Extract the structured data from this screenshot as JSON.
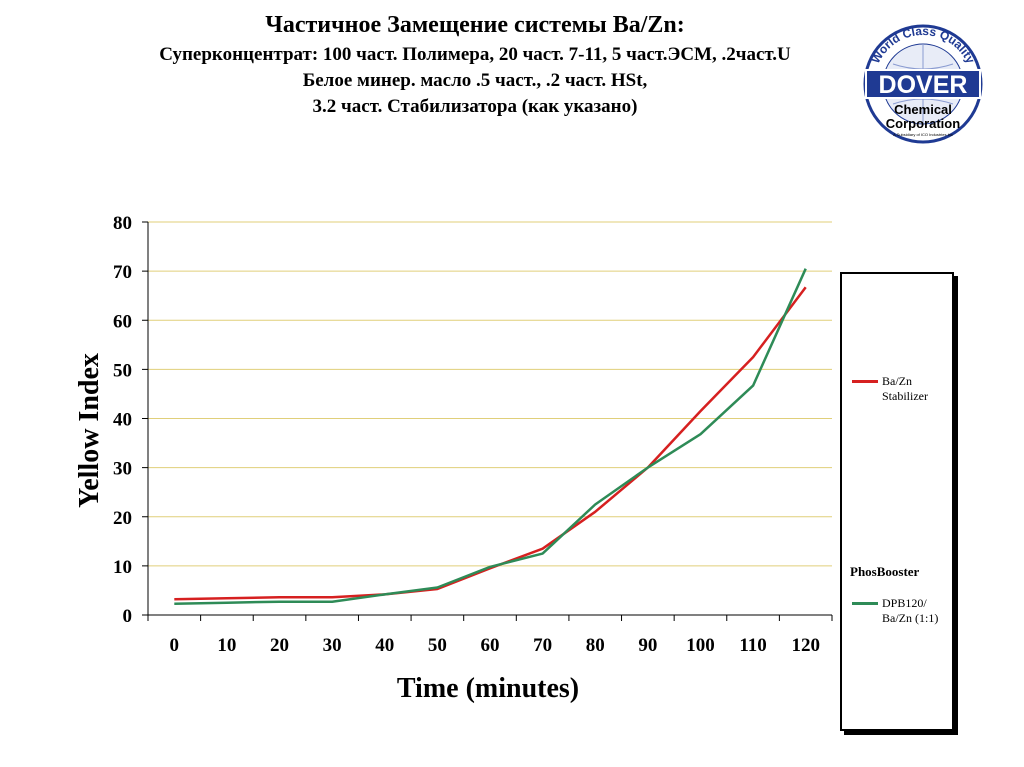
{
  "header": {
    "title_line1": "Частичное Замещение системы Ba/Zn:",
    "title_line2": "Суперконцентрат: 100 част. Полимера, 20 част. 7-11, 5 част.ЭСМ, .2част.U",
    "title_line3": "Белое минер. масло .5 част., .2 част. HSt,",
    "title_line4": "3.2 част. Стабилизатора (как указано)"
  },
  "logo": {
    "arc_text": "World Class Quality",
    "brand": "DOVER",
    "line1": "Chemical",
    "line2": "Corporation",
    "tagline": "A Subsidiary of ICO Industries Inc",
    "brand_color": "#1f3a93"
  },
  "legend": {
    "subtitle": "PhosBooster"
  },
  "chart_data": {
    "type": "line",
    "title": "",
    "xlabel": "Time (minutes)",
    "ylabel": "Yellow Index",
    "x": [
      0,
      10,
      20,
      30,
      40,
      50,
      60,
      70,
      80,
      90,
      100,
      110,
      120
    ],
    "xlim": [
      0,
      120
    ],
    "ylim": [
      0,
      80
    ],
    "yticks": [
      0,
      10,
      20,
      30,
      40,
      50,
      60,
      70,
      80
    ],
    "grid": true,
    "legend_position": "right",
    "series": [
      {
        "name": "Ba/Zn Stabilizer",
        "color": "#d62020",
        "values": [
          3.2,
          3.4,
          3.6,
          3.6,
          4.2,
          5.3,
          9.5,
          13.5,
          21,
          30,
          41.5,
          52.5,
          66.7
        ]
      },
      {
        "name": "DPB120/ Ba/Zn  (1:1)",
        "color": "#2e8b57",
        "values": [
          2.3,
          2.5,
          2.7,
          2.7,
          4.2,
          5.6,
          9.8,
          12.5,
          22.5,
          30,
          36.8,
          46.7,
          70.5
        ]
      }
    ]
  }
}
